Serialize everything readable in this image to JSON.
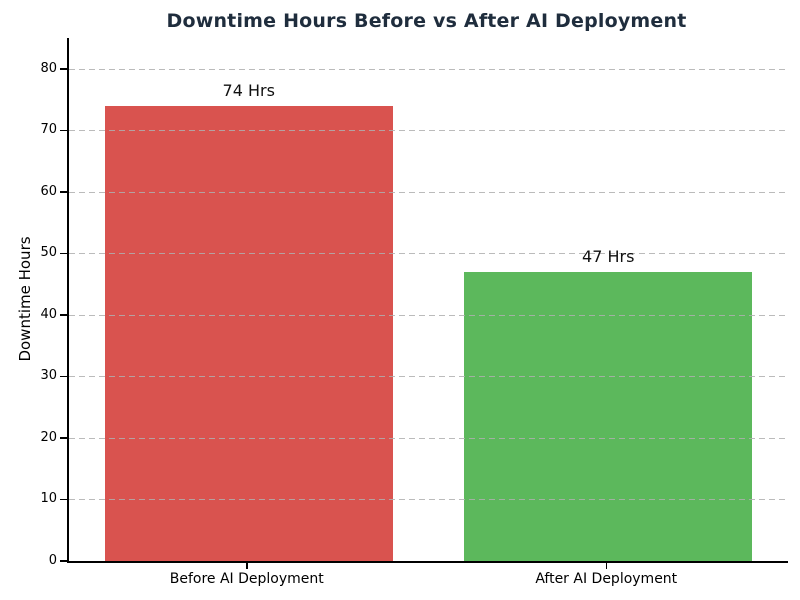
{
  "chart": {
    "title": "Downtime Hours Before vs After AI Deployment",
    "title_color": "#1f2d3d",
    "ylabel": "Downtime Hours"
  },
  "chart_data": {
    "type": "bar",
    "title": "Downtime Hours Before vs After AI Deployment",
    "xlabel": "",
    "ylabel": "Downtime Hours",
    "categories": [
      "Before AI Deployment",
      "After AI Deployment"
    ],
    "values": [
      74,
      47
    ],
    "bar_labels": [
      "74 Hrs",
      "47 Hrs"
    ],
    "bar_colors": [
      "#d9534f",
      "#5cb85c"
    ],
    "ylim": [
      0,
      85
    ],
    "yticks": [
      0,
      10,
      20,
      30,
      40,
      50,
      60,
      70,
      80
    ],
    "grid": "horizontal dashed gray, drawn above bars",
    "gridline_color": "#afafaf",
    "legend": "none",
    "background": "#ffffff",
    "spines": [
      "left",
      "bottom"
    ]
  }
}
